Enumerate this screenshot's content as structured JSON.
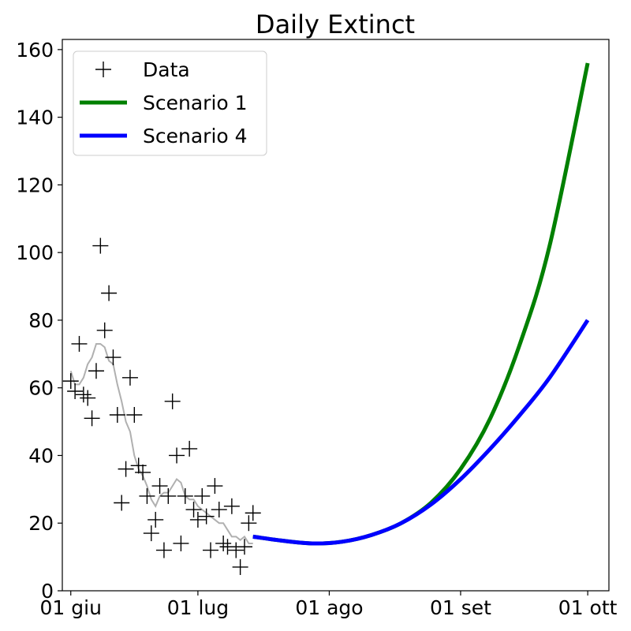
{
  "chart_data": {
    "type": "line",
    "title": "Daily Extinct",
    "xlabel": "",
    "ylabel": "",
    "xlim": [
      "2020-05-30",
      "2020-10-06"
    ],
    "ylim": [
      0,
      163
    ],
    "x_ticks": [
      {
        "date": "2020-06-01",
        "label": "01 giu"
      },
      {
        "date": "2020-07-01",
        "label": "01 lug"
      },
      {
        "date": "2020-08-01",
        "label": "01 ago"
      },
      {
        "date": "2020-09-01",
        "label": "01 set"
      },
      {
        "date": "2020-10-01",
        "label": "01 ott"
      }
    ],
    "y_ticks": [
      0,
      20,
      40,
      60,
      80,
      100,
      120,
      140,
      160
    ],
    "grid": false,
    "legend_position": "top-left",
    "legend": [
      {
        "label": "Data",
        "marker": "plus",
        "color": "#000000"
      },
      {
        "label": "Scenario 1",
        "marker": "line",
        "color": "#008000"
      },
      {
        "label": "Scenario 4",
        "marker": "line",
        "color": "#0000ff"
      }
    ],
    "data_points": [
      {
        "x": "2020-06-01",
        "y": 62
      },
      {
        "x": "2020-06-02",
        "y": 59
      },
      {
        "x": "2020-06-03",
        "y": 73
      },
      {
        "x": "2020-06-04",
        "y": 58
      },
      {
        "x": "2020-06-05",
        "y": 57
      },
      {
        "x": "2020-06-06",
        "y": 51
      },
      {
        "x": "2020-06-07",
        "y": 65
      },
      {
        "x": "2020-06-08",
        "y": 102
      },
      {
        "x": "2020-06-09",
        "y": 77
      },
      {
        "x": "2020-06-10",
        "y": 88
      },
      {
        "x": "2020-06-11",
        "y": 69
      },
      {
        "x": "2020-06-12",
        "y": 52
      },
      {
        "x": "2020-06-13",
        "y": 26
      },
      {
        "x": "2020-06-14",
        "y": 36
      },
      {
        "x": "2020-06-15",
        "y": 63
      },
      {
        "x": "2020-06-16",
        "y": 52
      },
      {
        "x": "2020-06-17",
        "y": 37
      },
      {
        "x": "2020-06-18",
        "y": 35
      },
      {
        "x": "2020-06-19",
        "y": 28
      },
      {
        "x": "2020-06-20",
        "y": 17
      },
      {
        "x": "2020-06-21",
        "y": 21
      },
      {
        "x": "2020-06-22",
        "y": 31
      },
      {
        "x": "2020-06-23",
        "y": 12
      },
      {
        "x": "2020-06-24",
        "y": 28
      },
      {
        "x": "2020-06-25",
        "y": 56
      },
      {
        "x": "2020-06-26",
        "y": 40
      },
      {
        "x": "2020-06-27",
        "y": 14
      },
      {
        "x": "2020-06-28",
        "y": 28
      },
      {
        "x": "2020-06-29",
        "y": 42
      },
      {
        "x": "2020-06-30",
        "y": 24
      },
      {
        "x": "2020-07-01",
        "y": 21
      },
      {
        "x": "2020-07-02",
        "y": 28
      },
      {
        "x": "2020-07-03",
        "y": 22
      },
      {
        "x": "2020-07-04",
        "y": 12
      },
      {
        "x": "2020-07-05",
        "y": 31
      },
      {
        "x": "2020-07-06",
        "y": 24
      },
      {
        "x": "2020-07-07",
        "y": 14
      },
      {
        "x": "2020-07-08",
        "y": 13
      },
      {
        "x": "2020-07-09",
        "y": 25
      },
      {
        "x": "2020-07-10",
        "y": 12
      },
      {
        "x": "2020-07-11",
        "y": 7
      },
      {
        "x": "2020-07-12",
        "y": 13
      },
      {
        "x": "2020-07-13",
        "y": 20
      },
      {
        "x": "2020-07-14",
        "y": 23
      }
    ],
    "moving_average": {
      "color": "#b0b0b0",
      "points": [
        {
          "x": "2020-06-01",
          "y": 65
        },
        {
          "x": "2020-06-02",
          "y": 61
        },
        {
          "x": "2020-06-03",
          "y": 61
        },
        {
          "x": "2020-06-04",
          "y": 63
        },
        {
          "x": "2020-06-05",
          "y": 67
        },
        {
          "x": "2020-06-06",
          "y": 69
        },
        {
          "x": "2020-06-07",
          "y": 73
        },
        {
          "x": "2020-06-08",
          "y": 73
        },
        {
          "x": "2020-06-09",
          "y": 72
        },
        {
          "x": "2020-06-10",
          "y": 68
        },
        {
          "x": "2020-06-11",
          "y": 67
        },
        {
          "x": "2020-06-12",
          "y": 61
        },
        {
          "x": "2020-06-13",
          "y": 56
        },
        {
          "x": "2020-06-14",
          "y": 50
        },
        {
          "x": "2020-06-15",
          "y": 47
        },
        {
          "x": "2020-06-16",
          "y": 40
        },
        {
          "x": "2020-06-17",
          "y": 36
        },
        {
          "x": "2020-06-18",
          "y": 34
        },
        {
          "x": "2020-06-19",
          "y": 31
        },
        {
          "x": "2020-06-20",
          "y": 27
        },
        {
          "x": "2020-06-21",
          "y": 25
        },
        {
          "x": "2020-06-22",
          "y": 28
        },
        {
          "x": "2020-06-23",
          "y": 29
        },
        {
          "x": "2020-06-24",
          "y": 29
        },
        {
          "x": "2020-06-25",
          "y": 31
        },
        {
          "x": "2020-06-26",
          "y": 33
        },
        {
          "x": "2020-06-27",
          "y": 32
        },
        {
          "x": "2020-06-28",
          "y": 28
        },
        {
          "x": "2020-06-29",
          "y": 27
        },
        {
          "x": "2020-06-30",
          "y": 27
        },
        {
          "x": "2020-07-01",
          "y": 25
        },
        {
          "x": "2020-07-02",
          "y": 24
        },
        {
          "x": "2020-07-03",
          "y": 23
        },
        {
          "x": "2020-07-04",
          "y": 22
        },
        {
          "x": "2020-07-05",
          "y": 21
        },
        {
          "x": "2020-07-06",
          "y": 20
        },
        {
          "x": "2020-07-07",
          "y": 20
        },
        {
          "x": "2020-07-08",
          "y": 18
        },
        {
          "x": "2020-07-09",
          "y": 16
        },
        {
          "x": "2020-07-10",
          "y": 16
        },
        {
          "x": "2020-07-11",
          "y": 15
        },
        {
          "x": "2020-07-12",
          "y": 16
        },
        {
          "x": "2020-07-13",
          "y": 14
        },
        {
          "x": "2020-07-14",
          "y": 14
        }
      ]
    },
    "series": [
      {
        "name": "Scenario 1",
        "color": "#008000",
        "points": [
          {
            "x": "2020-07-14",
            "y": 16
          },
          {
            "x": "2020-07-21",
            "y": 14.8
          },
          {
            "x": "2020-07-28",
            "y": 14
          },
          {
            "x": "2020-08-04",
            "y": 14.5
          },
          {
            "x": "2020-08-11",
            "y": 16.5
          },
          {
            "x": "2020-08-18",
            "y": 20
          },
          {
            "x": "2020-08-25",
            "y": 26
          },
          {
            "x": "2020-09-01",
            "y": 36
          },
          {
            "x": "2020-09-08",
            "y": 51
          },
          {
            "x": "2020-09-15",
            "y": 73
          },
          {
            "x": "2020-09-22",
            "y": 102
          },
          {
            "x": "2020-10-01",
            "y": 156
          }
        ]
      },
      {
        "name": "Scenario 4",
        "color": "#0000ff",
        "points": [
          {
            "x": "2020-07-14",
            "y": 16
          },
          {
            "x": "2020-07-21",
            "y": 14.8
          },
          {
            "x": "2020-07-28",
            "y": 14
          },
          {
            "x": "2020-08-04",
            "y": 14.5
          },
          {
            "x": "2020-08-11",
            "y": 16.5
          },
          {
            "x": "2020-08-18",
            "y": 20
          },
          {
            "x": "2020-08-25",
            "y": 25.5
          },
          {
            "x": "2020-09-01",
            "y": 33
          },
          {
            "x": "2020-09-08",
            "y": 42
          },
          {
            "x": "2020-09-15",
            "y": 52
          },
          {
            "x": "2020-09-22",
            "y": 63
          },
          {
            "x": "2020-10-01",
            "y": 80
          }
        ]
      }
    ]
  }
}
